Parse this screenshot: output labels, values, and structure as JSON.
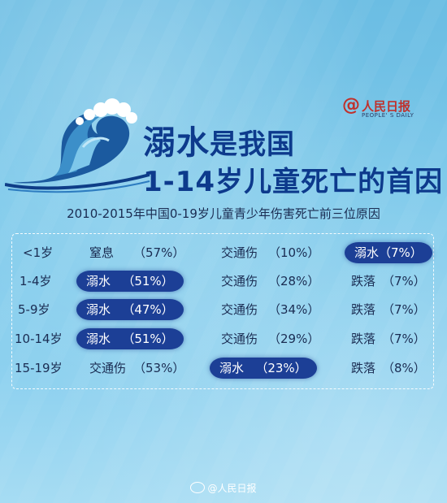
{
  "logo": {
    "at": "@",
    "name": "人民日报",
    "sub": "PEOPLE' S DAILY"
  },
  "title": {
    "line1_big": "溺水",
    "line1_rest": "是我国",
    "line2": "1-14岁儿童死亡的首因"
  },
  "subtitle": "2010-2015年中国0-19岁儿童青少年伤害死亡前三位原因",
  "rows": [
    {
      "age": "<1岁",
      "c1": "窒息",
      "p1": "（57%）",
      "c2": "交通伤",
      "p2": "（10%）",
      "c3": "溺水",
      "p3": "（7%）"
    },
    {
      "age": "1-4岁",
      "c1": "溺水",
      "p1": "（51%）",
      "c2": "交通伤",
      "p2": "（28%）",
      "c3": "跌落",
      "p3": "（7%）"
    },
    {
      "age": "5-9岁",
      "c1": "溺水",
      "p1": "（47%）",
      "c2": "交通伤",
      "p2": "（34%）",
      "c3": "跌落",
      "p3": "（7%）"
    },
    {
      "age": "10-14岁",
      "c1": "溺水",
      "p1": "（51%）",
      "c2": "交通伤",
      "p2": "（29%）",
      "c3": "跌落",
      "p3": "（7%）"
    },
    {
      "age": "15-19岁",
      "c1": "交通伤",
      "p1": "（53%）",
      "c2": "溺水",
      "p2": "（23%）",
      "c3": "跌落",
      "p3": "（8%）"
    }
  ],
  "footer": "@人民日报",
  "colors": {
    "highlight": "#1c3f96",
    "title": "#0d3a8c",
    "brand": "#c0312c"
  }
}
